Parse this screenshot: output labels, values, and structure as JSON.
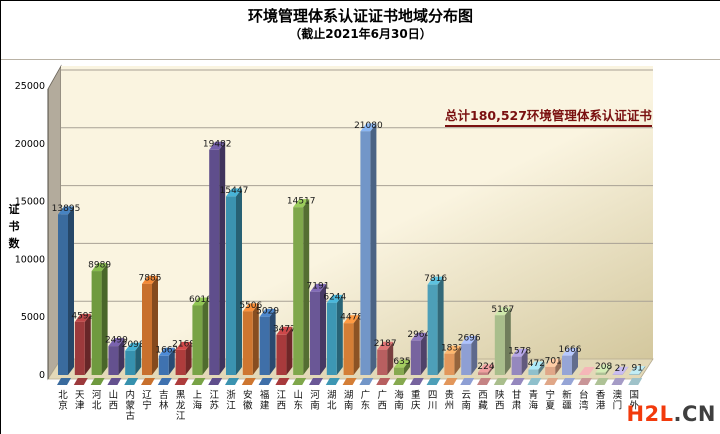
{
  "page": {
    "watermark": {
      "part1": "H2L",
      "part2": ".CN",
      "color1": "#f23a0c",
      "color2": "#3f3f3f"
    }
  },
  "chart_data": {
    "type": "bar",
    "title": "环境管理体系认证证书地域分布图",
    "subtitle": "（截止2021年6月30日）",
    "ylabel": "证书数",
    "xlabel": "",
    "annotation": "总计180,527环境管理体系认证证书",
    "total": 180527,
    "ylim": [
      0,
      25000
    ],
    "yticks": [
      0,
      5000,
      10000,
      15000,
      20000,
      25000
    ],
    "grid": true,
    "legend": "none",
    "style": "3d-bar",
    "wall_color_top": "#faf4e0",
    "wall_color_bottom": "#d3c79d",
    "floor_color": "#e3d9b8",
    "gridline_color": "#a8a195",
    "side_wall_color": "#b3ab9c",
    "categories": [
      "北京",
      "天津",
      "河北",
      "山西",
      "内蒙古",
      "辽宁",
      "吉林",
      "黑龙江",
      "上海",
      "江苏",
      "浙江",
      "安徽",
      "福建",
      "江西",
      "山东",
      "河南",
      "湖北",
      "湖南",
      "广东",
      "广西",
      "海南",
      "重庆",
      "四川",
      "贵州",
      "云南",
      "西藏",
      "陕西",
      "甘肃",
      "青海",
      "宁夏",
      "新疆",
      "台湾",
      "香港",
      "澳门",
      "国外"
    ],
    "values": [
      13895,
      4592,
      8989,
      2499,
      2098,
      7885,
      1662,
      2169,
      6016,
      19482,
      15447,
      5506,
      5029,
      3477,
      14517,
      7191,
      6244,
      4478,
      21080,
      2187,
      635,
      2964,
      7816,
      1837,
      2696,
      224,
      5167,
      1578,
      472,
      701,
      1666,
      2,
      208,
      27,
      91
    ],
    "show_value_labels": [
      true,
      true,
      true,
      true,
      true,
      true,
      true,
      true,
      true,
      true,
      true,
      true,
      true,
      true,
      true,
      true,
      true,
      true,
      true,
      true,
      true,
      true,
      true,
      true,
      true,
      true,
      true,
      true,
      true,
      true,
      true,
      false,
      true,
      true,
      true
    ],
    "bar_colors": [
      "#3a6b9e",
      "#9c3a3c",
      "#6f9a3f",
      "#64518f",
      "#3691ae",
      "#c8702d",
      "#3f72b0",
      "#ae3c3c",
      "#78a346",
      "#5f4e8c",
      "#3b93b0",
      "#ce7630",
      "#3f6fa8",
      "#a83a3c",
      "#7fa74b",
      "#6a5796",
      "#3d97b4",
      "#d47e36",
      "#7296c8",
      "#b85f60",
      "#86a94f",
      "#77649f",
      "#4d9fb8",
      "#e2975b",
      "#8e9fd4",
      "#c58384",
      "#a9be8c",
      "#9588be",
      "#8fc0cc",
      "#e0a788",
      "#96a5d6",
      "#c99597",
      "#aec296",
      "#a59bc6",
      "#9fc2c9"
    ]
  }
}
